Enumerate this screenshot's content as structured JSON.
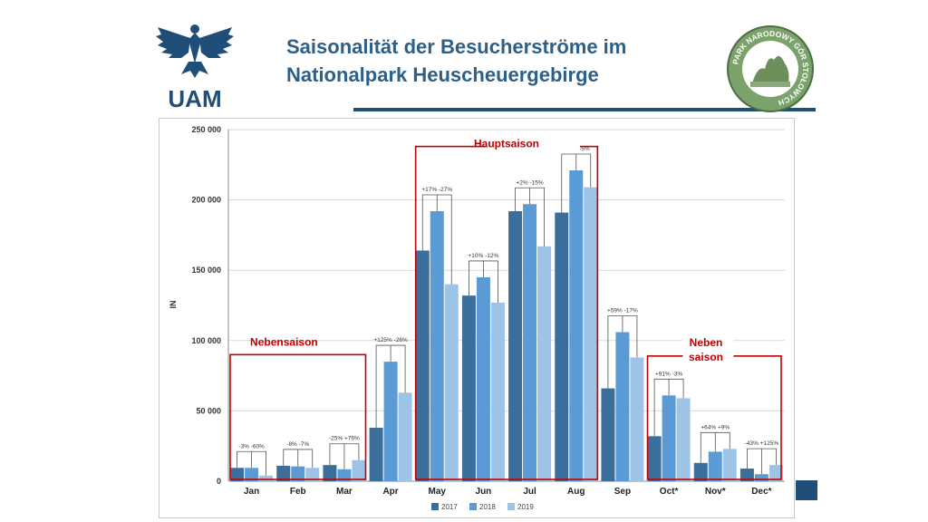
{
  "header": {
    "title_line1": "Saisonalität der Besucherströme im",
    "title_line2": "Nationalpark Heuscheuergebirge",
    "logo_left_text": "UAM",
    "logo_right_text": "PARK NARODOWY GÓR STOŁOWYCH"
  },
  "chart_data": {
    "type": "bar",
    "ylabel": "IN",
    "ylim": [
      0,
      250000
    ],
    "yticks": [
      0,
      50000,
      100000,
      150000,
      200000,
      250000
    ],
    "ytick_labels": [
      "0",
      "50 000",
      "100 000",
      "150 000",
      "200 000",
      "250 000"
    ],
    "categories": [
      "Jan",
      "Feb",
      "Mar",
      "Apr",
      "May",
      "Jun",
      "Jul",
      "Aug",
      "Sep",
      "Oct*",
      "Nov*",
      "Dec*"
    ],
    "series": [
      {
        "name": "2017",
        "color": "#3c6e9c",
        "values": [
          9500,
          11000,
          11500,
          38000,
          164000,
          132000,
          192000,
          191000,
          66000,
          32000,
          13000,
          9000
        ]
      },
      {
        "name": "2018",
        "color": "#5b9bd5",
        "values": [
          9500,
          10500,
          8500,
          85000,
          192000,
          145000,
          197000,
          221000,
          106000,
          61000,
          21000,
          5000
        ]
      },
      {
        "name": "2019",
        "color": "#9dc3e6",
        "values": [
          4000,
          9500,
          15000,
          63000,
          140000,
          127000,
          167000,
          209000,
          88000,
          59000,
          23000,
          11500
        ]
      }
    ],
    "change_labels": [
      "-3% -60%",
      "-8% -7%",
      "-25% +76%",
      "+125% -26%",
      "+17% -27%",
      "+10% -12%",
      "+2% -15%",
      "+16% -5%",
      "+59% -17%",
      "+91% -3%",
      "+64% +9%",
      "-43% +125%"
    ],
    "season_labels": {
      "off_left": "Nebensaison",
      "main": "Hauptsaison",
      "off_right_line1": "Neben",
      "off_right_line2": "saison"
    },
    "season_color": "#c00000",
    "legend_position": "bottom",
    "grid": true
  }
}
